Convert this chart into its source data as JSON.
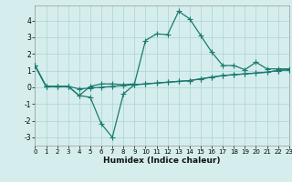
{
  "x": [
    0,
    1,
    2,
    3,
    4,
    5,
    6,
    7,
    8,
    9,
    10,
    11,
    12,
    13,
    14,
    15,
    16,
    17,
    18,
    19,
    20,
    21,
    22,
    23
  ],
  "line1": [
    1.3,
    0.05,
    0.05,
    0.05,
    -0.5,
    0.05,
    0.2,
    0.2,
    0.15,
    0.2,
    2.8,
    3.2,
    3.15,
    4.55,
    4.1,
    3.1,
    2.1,
    1.3,
    1.3,
    1.05,
    1.5,
    1.1,
    1.1,
    1.1
  ],
  "line2": [
    1.3,
    0.05,
    0.05,
    0.05,
    -0.5,
    -0.6,
    -2.2,
    -3.0,
    -0.4,
    0.15,
    0.2,
    0.25,
    0.3,
    0.35,
    0.4,
    0.5,
    0.6,
    0.7,
    0.75,
    0.8,
    0.85,
    0.9,
    1.0,
    1.05
  ],
  "line3": [
    1.3,
    0.05,
    0.05,
    0.05,
    -0.1,
    -0.05,
    0.0,
    0.05,
    0.1,
    0.15,
    0.2,
    0.25,
    0.3,
    0.35,
    0.4,
    0.5,
    0.6,
    0.7,
    0.75,
    0.8,
    0.85,
    0.9,
    1.0,
    1.05
  ],
  "bg_color": "#d5eeed",
  "line_color": "#1a7a6e",
  "grid_color": "#b0d8d5",
  "xlim": [
    0,
    23
  ],
  "ylim": [
    -3.5,
    4.9
  ],
  "yticks": [
    -3,
    -2,
    -1,
    0,
    1,
    2,
    3,
    4
  ],
  "xticks": [
    0,
    1,
    2,
    3,
    4,
    5,
    6,
    7,
    8,
    9,
    10,
    11,
    12,
    13,
    14,
    15,
    16,
    17,
    18,
    19,
    20,
    21,
    22,
    23
  ],
  "xlabel": "Humidex (Indice chaleur)"
}
